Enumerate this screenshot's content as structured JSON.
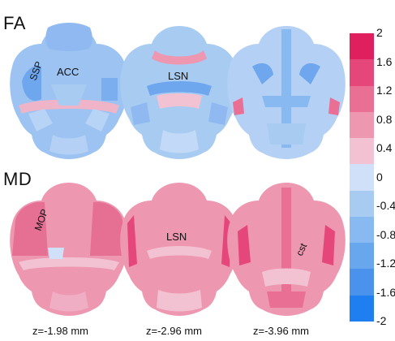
{
  "rows": [
    {
      "label": "FA",
      "regions": [
        "SSP",
        "ACC",
        "LSN"
      ]
    },
    {
      "label": "MD",
      "regions": [
        "MOP",
        "LSN",
        "cst"
      ]
    }
  ],
  "depths": [
    "z=-1.98 mm",
    "z=-2.96 mm",
    "z=-3.96 mm"
  ],
  "colorbar": {
    "ticks": [
      "2",
      "1.6",
      "1.2",
      "0.8",
      "0.4",
      "0",
      "-0.4",
      "-0.8",
      "-1.2",
      "-1.6",
      "-2"
    ],
    "colors": [
      "#e0205e",
      "#e5477b",
      "#e96f94",
      "#ee97b1",
      "#f3c2d2",
      "#cfe0f8",
      "#a8cbf2",
      "#88b9f0",
      "#68a6ee",
      "#4b92ec",
      "#1f7ff0"
    ]
  }
}
